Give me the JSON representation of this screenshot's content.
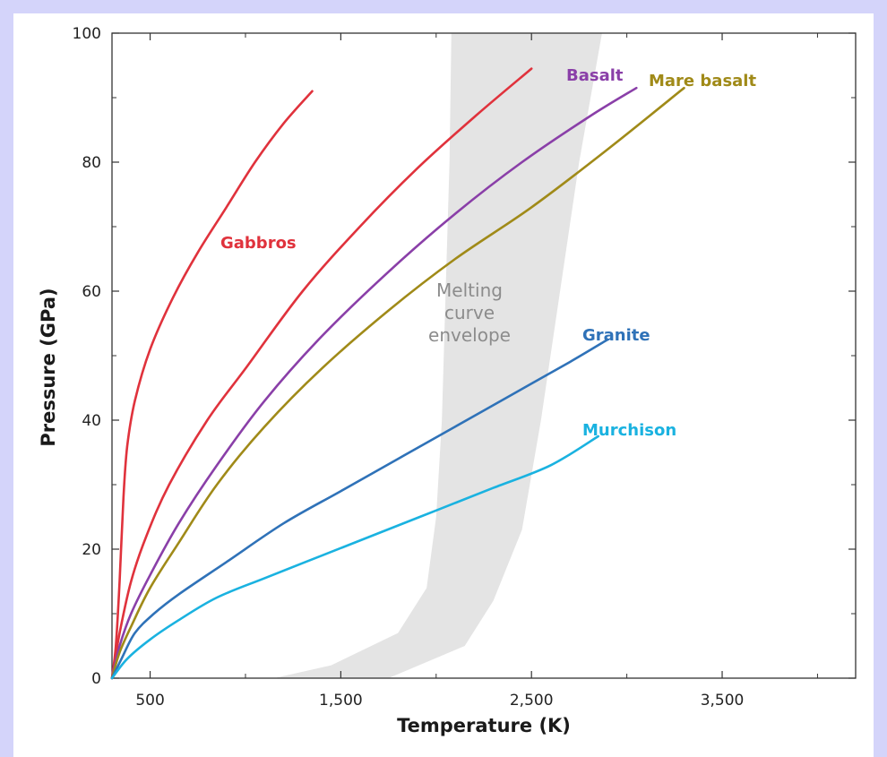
{
  "chart_data": {
    "type": "line",
    "xlabel": "Temperature (K)",
    "ylabel": "Pressure (GPa)",
    "xlim": [
      300,
      4200
    ],
    "ylim": [
      0,
      100
    ],
    "xticks": [
      500,
      1500,
      2500,
      3500
    ],
    "xtick_labels": [
      "500",
      "1,500",
      "2,500",
      "3,500"
    ],
    "xminor": [
      1000,
      2000,
      3000,
      4000
    ],
    "yticks": [
      0,
      20,
      40,
      60,
      80,
      100
    ],
    "ytick_labels": [
      "0",
      "20",
      "40",
      "60",
      "80",
      "100"
    ],
    "yminor": [
      10,
      30,
      50,
      70,
      90
    ],
    "grid": false,
    "legend": "none (series labelled directly on the curves)",
    "series": [
      {
        "name": "Gabbros",
        "color": "#e0323c",
        "points": [
          [
            300,
            0
          ],
          [
            320,
            5
          ],
          [
            340,
            15
          ],
          [
            360,
            28
          ],
          [
            380,
            36
          ],
          [
            420,
            43
          ],
          [
            500,
            51
          ],
          [
            620,
            59
          ],
          [
            750,
            66
          ],
          [
            900,
            73
          ],
          [
            1050,
            80
          ],
          [
            1200,
            86
          ],
          [
            1350,
            91
          ]
        ]
      },
      {
        "name": "",
        "color": "#e0323c",
        "points": [
          [
            300,
            0
          ],
          [
            340,
            7
          ],
          [
            400,
            15
          ],
          [
            480,
            22
          ],
          [
            600,
            30
          ],
          [
            800,
            40
          ],
          [
            1000,
            48
          ],
          [
            1300,
            60
          ],
          [
            1600,
            70
          ],
          [
            1900,
            79
          ],
          [
            2200,
            87
          ],
          [
            2500,
            94.5
          ]
        ]
      },
      {
        "name": "Basalt",
        "color": "#8a3fa8",
        "points": [
          [
            300,
            0
          ],
          [
            340,
            5
          ],
          [
            400,
            10
          ],
          [
            500,
            16
          ],
          [
            650,
            24
          ],
          [
            850,
            33
          ],
          [
            1100,
            43
          ],
          [
            1400,
            53
          ],
          [
            1750,
            63
          ],
          [
            2100,
            72
          ],
          [
            2450,
            80
          ],
          [
            2800,
            87
          ],
          [
            3050,
            91.5
          ]
        ]
      },
      {
        "name": "Mare basalt",
        "color": "#a08a18",
        "points": [
          [
            300,
            0
          ],
          [
            340,
            4
          ],
          [
            400,
            8
          ],
          [
            500,
            14
          ],
          [
            650,
            21
          ],
          [
            850,
            30
          ],
          [
            1100,
            39
          ],
          [
            1400,
            48
          ],
          [
            1750,
            57
          ],
          [
            2100,
            65
          ],
          [
            2500,
            73
          ],
          [
            2900,
            82
          ],
          [
            3300,
            91.5
          ]
        ]
      },
      {
        "name": "Granite",
        "color": "#2f72b8",
        "points": [
          [
            300,
            0
          ],
          [
            350,
            3
          ],
          [
            420,
            7
          ],
          [
            520,
            10
          ],
          [
            650,
            13
          ],
          [
            900,
            18
          ],
          [
            1200,
            24
          ],
          [
            1500,
            29
          ],
          [
            1800,
            34
          ],
          [
            2100,
            39
          ],
          [
            2400,
            44
          ],
          [
            2700,
            49
          ],
          [
            2900,
            52.5
          ]
        ]
      },
      {
        "name": "Murchison",
        "color": "#1ab2e0",
        "points": [
          [
            300,
            0
          ],
          [
            380,
            3
          ],
          [
            500,
            6
          ],
          [
            650,
            9
          ],
          [
            850,
            12.5
          ],
          [
            1100,
            15.5
          ],
          [
            1400,
            19
          ],
          [
            1700,
            22.5
          ],
          [
            2000,
            26
          ],
          [
            2300,
            29.5
          ],
          [
            2600,
            33
          ],
          [
            2850,
            37.5
          ]
        ]
      }
    ],
    "annotations": [
      {
        "type": "band",
        "label": [
          "Melting",
          "curve",
          "envelope"
        ],
        "color": "#e4e4e4",
        "left": [
          [
            1150,
            0
          ],
          [
            1450,
            2
          ],
          [
            1800,
            7
          ],
          [
            1950,
            14
          ],
          [
            2000,
            25
          ],
          [
            2030,
            40
          ],
          [
            2050,
            60
          ],
          [
            2070,
            80
          ],
          [
            2080,
            100
          ]
        ],
        "right": [
          [
            1750,
            0
          ],
          [
            2150,
            5
          ],
          [
            2300,
            12
          ],
          [
            2450,
            23
          ],
          [
            2550,
            40
          ],
          [
            2650,
            60
          ],
          [
            2750,
            80
          ],
          [
            2870,
            100
          ]
        ]
      }
    ]
  }
}
